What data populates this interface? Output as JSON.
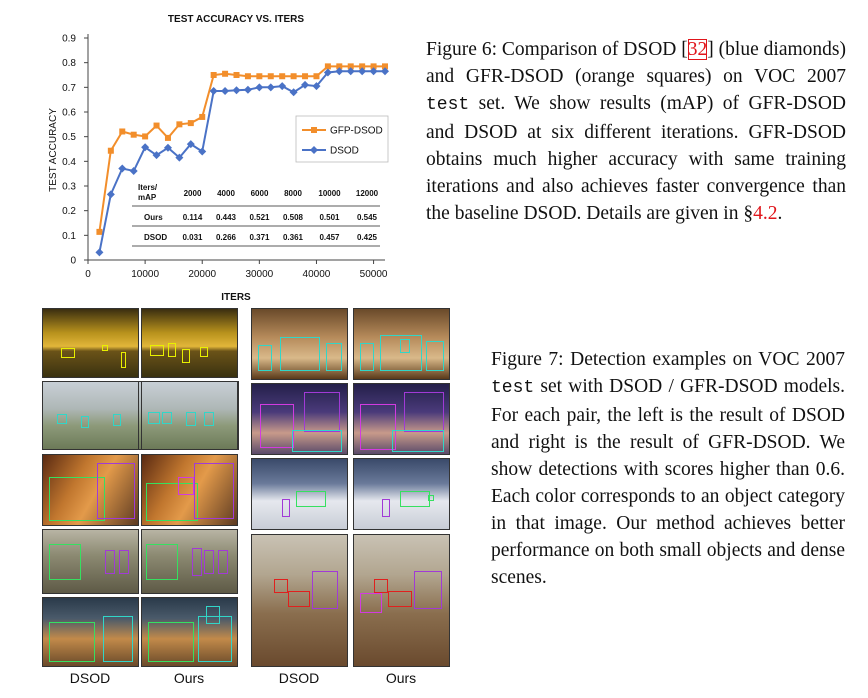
{
  "chart_data": {
    "type": "line",
    "title": "TEST ACCURACY VS. ITERS",
    "xlabel": "ITERS",
    "ylabel": "TEST ACCURACY",
    "xlim": [
      0,
      52000
    ],
    "ylim": [
      0,
      0.9
    ],
    "xticks": [
      0,
      10000,
      20000,
      30000,
      40000,
      50000
    ],
    "xtick_labels": [
      "0",
      "10000",
      "20000",
      "30000",
      "40000",
      "50000"
    ],
    "yticks": [
      0,
      0.1,
      0.2,
      0.3,
      0.4,
      0.5,
      0.6,
      0.7,
      0.8,
      0.9
    ],
    "ytick_labels": [
      "0",
      "0.1",
      "0.2",
      "0.3",
      "0.4",
      "0.5",
      "0.6",
      "0.7",
      "0.8",
      "0.9"
    ],
    "legend": "right-middle",
    "series": [
      {
        "name": "GFP-DSOD",
        "color": "#f28e2b",
        "marker": "square",
        "x": [
          2000,
          4000,
          6000,
          8000,
          10000,
          12000,
          14000,
          16000,
          18000,
          20000,
          22000,
          24000,
          26000,
          28000,
          30000,
          32000,
          34000,
          36000,
          38000,
          40000,
          42000,
          44000,
          46000,
          48000,
          50000,
          52000
        ],
        "y": [
          0.114,
          0.443,
          0.521,
          0.508,
          0.501,
          0.545,
          0.495,
          0.55,
          0.555,
          0.58,
          0.75,
          0.755,
          0.75,
          0.745,
          0.745,
          0.745,
          0.745,
          0.745,
          0.745,
          0.745,
          0.785,
          0.785,
          0.785,
          0.785,
          0.785,
          0.785
        ]
      },
      {
        "name": "DSOD",
        "color": "#4a72c6",
        "marker": "diamond",
        "x": [
          2000,
          4000,
          6000,
          8000,
          10000,
          12000,
          14000,
          16000,
          18000,
          20000,
          22000,
          24000,
          26000,
          28000,
          30000,
          32000,
          34000,
          36000,
          38000,
          40000,
          42000,
          44000,
          46000,
          48000,
          50000,
          52000
        ],
        "y": [
          0.031,
          0.266,
          0.371,
          0.361,
          0.457,
          0.425,
          0.455,
          0.415,
          0.47,
          0.44,
          0.685,
          0.685,
          0.688,
          0.69,
          0.7,
          0.7,
          0.705,
          0.68,
          0.71,
          0.705,
          0.76,
          0.765,
          0.765,
          0.765,
          0.765,
          0.765
        ]
      }
    ],
    "table": {
      "header": [
        "Iters/\nmAP",
        "2000",
        "4000",
        "6000",
        "8000",
        "10000",
        "12000"
      ],
      "rows": [
        [
          "Ours",
          "0.114",
          "0.443",
          "0.521",
          "0.508",
          "0.501",
          "0.545"
        ],
        [
          "DSOD",
          "0.031",
          "0.266",
          "0.371",
          "0.361",
          "0.457",
          "0.425"
        ]
      ]
    }
  },
  "figure6": {
    "pre": "Figure 6: Comparison of DSOD [",
    "ref": "32",
    "post1": "] (blue diamonds) and GFR-DSOD (orange squares) on VOC 2007 ",
    "mono": "test",
    "post2": " set. We show results (mAP) of GFR-DSOD and DSOD at six different iterations. GFR-DSOD obtains much higher accuracy with same training iterations and also achieves faster convergence than the baseline DSOD. Details are given in ",
    "sec": "§",
    "sec_ref": "4.2",
    "end": "."
  },
  "figure7": {
    "pre": "Figure 7: Detection examples on VOC 2007 ",
    "mono": "test",
    "post": " set with DSOD / GFR-DSOD models. For each pair, the left is the result of DSOD and right is the result of GFR-DSOD. We show detections with scores higher than 0.6. Each color corresponds to an object category in that image. Our method achieves better performance on both small objects and dense scenes."
  },
  "column_labels": [
    "DSOD",
    "Ours",
    "DSOD",
    "Ours"
  ],
  "colors": {
    "box_yellow": "#e8f000",
    "box_cyan": "#31d6c8",
    "box_purple": "#a13ad6",
    "box_green": "#36e060",
    "box_red": "#e0201e",
    "box_magenta": "#d23be0",
    "ref_red": "#e0151b"
  }
}
